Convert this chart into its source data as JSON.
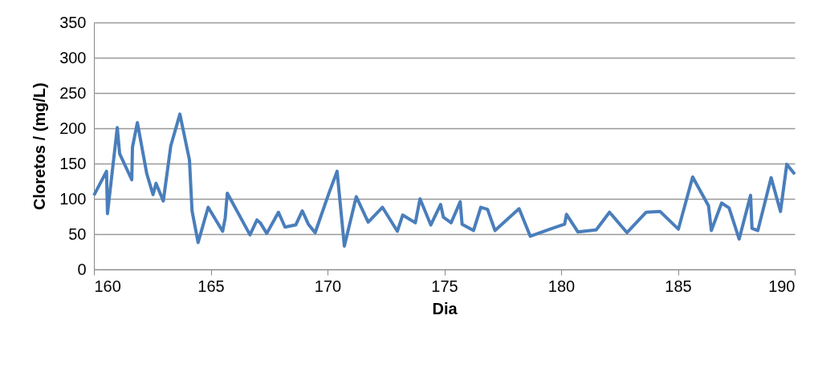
{
  "chart_data": {
    "type": "line",
    "xlabel": "Dia",
    "ylabel": "Cloretos / (mg/L)",
    "xlim": [
      160,
      190
    ],
    "xticks": [
      160,
      165,
      170,
      175,
      180,
      185,
      190
    ],
    "ylim": [
      0,
      350
    ],
    "yticks": [
      0,
      50,
      100,
      150,
      200,
      250,
      300,
      350
    ],
    "grid": "y",
    "marker": "none",
    "line_style": "solid",
    "series": [
      {
        "color": "#4a7ebb",
        "x": [
          160.0,
          160.54,
          160.58,
          161.0,
          161.1,
          161.62,
          161.65,
          161.86,
          162.26,
          162.53,
          162.66,
          162.97,
          163.29,
          163.68,
          164.09,
          164.2,
          164.46,
          164.89,
          165.51,
          165.62,
          165.71,
          166.68,
          166.98,
          167.12,
          167.4,
          167.9,
          168.18,
          168.64,
          168.92,
          169.18,
          169.47,
          170.07,
          170.41,
          170.72,
          171.23,
          171.74,
          172.35,
          172.99,
          173.22,
          173.76,
          173.96,
          174.42,
          174.84,
          174.96,
          175.29,
          175.68,
          175.76,
          176.25,
          176.56,
          176.85,
          177.17,
          178.2,
          178.68,
          179.69,
          180.15,
          180.23,
          180.72,
          181.5,
          182.07,
          182.82,
          183.64,
          184.24,
          185.02,
          185.63,
          186.31,
          186.43,
          186.87,
          187.19,
          187.62,
          188.11,
          188.17,
          188.42,
          188.99,
          189.39,
          189.66,
          190.0
        ],
        "values": [
          105,
          139,
          79,
          201,
          164,
          127,
          173,
          208,
          136,
          106,
          122,
          97,
          175,
          220,
          155,
          83,
          38,
          88,
          54,
          73,
          108,
          49,
          70,
          66,
          51,
          81,
          60,
          63,
          83,
          64,
          52,
          109,
          139,
          33,
          103,
          67,
          88,
          54,
          77,
          66,
          100,
          63,
          92,
          74,
          66,
          96,
          64,
          55,
          88,
          85,
          55,
          86,
          47,
          59,
          64,
          78,
          53,
          56,
          81,
          52,
          81,
          82,
          57,
          131,
          90,
          55,
          94,
          87,
          43,
          105,
          58,
          55,
          130,
          82,
          149,
          135
        ]
      }
    ]
  }
}
